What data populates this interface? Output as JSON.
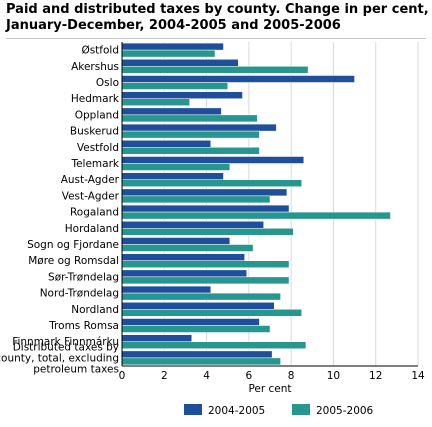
{
  "chart_data": {
    "type": "bar",
    "orientation": "horizontal",
    "title": "Paid and distributed taxes by county. Change in per cent, January-December, 2004-2005 and 2005-2006",
    "xlabel": "Per cent",
    "ylabel": "",
    "xlim": [
      0,
      14
    ],
    "xticks": [
      "0",
      "2",
      "4",
      "6",
      "8",
      "10",
      "12",
      "14"
    ],
    "grid": true,
    "legend_position": "bottom",
    "categories": [
      "Østfold",
      "Akershus",
      "Oslo",
      "Hedmark",
      "Oppland",
      "Buskerud",
      "Vestfold",
      "Telemark",
      "Aust-Agder",
      "Vest-Agder",
      "Rogaland",
      "Hordaland",
      "Sogn og Fjordane",
      "Møre og Romsdal",
      "Sør-Trøndelag",
      "Nord-Trøndelag",
      "Nordland",
      "Troms Romsa",
      "Finnmark Finnmárku",
      "Distributed taxes by\ncounty, total, excluding\npetroleum taxes"
    ],
    "series": [
      {
        "name": "2004-2005",
        "color": "#1f4f9a",
        "values": [
          4.8,
          5.5,
          11.0,
          5.7,
          4.7,
          7.3,
          4.2,
          8.6,
          4.8,
          7.8,
          7.9,
          6.7,
          5.1,
          5.8,
          5.9,
          4.2,
          7.2,
          6.5,
          3.3,
          7.1
        ]
      },
      {
        "name": "2005-2006",
        "color": "#27968f",
        "values": [
          4.4,
          8.8,
          5.0,
          3.2,
          6.4,
          6.5,
          6.5,
          5.1,
          8.5,
          7.0,
          12.7,
          8.1,
          6.2,
          7.9,
          7.9,
          7.5,
          8.5,
          7.0,
          8.7,
          7.5
        ]
      }
    ]
  }
}
